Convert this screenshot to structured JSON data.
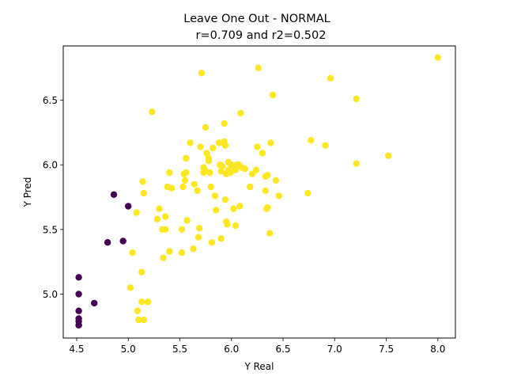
{
  "chart_data": {
    "type": "scatter",
    "title_line1": "Leave One Out - NORMAL",
    "title_line2": "r=0.709 and r2=0.502",
    "xlabel": "Y Real",
    "ylabel": "Y Pred",
    "xlim": [
      4.37,
      8.17
    ],
    "ylim": [
      4.66,
      6.92
    ],
    "xticks": [
      "4.5",
      "5.0",
      "5.5",
      "6.0",
      "6.5",
      "7.0",
      "7.5",
      "8.0"
    ],
    "yticks": [
      "5.0",
      "5.5",
      "6.0",
      "6.5"
    ],
    "grid": false,
    "colors": {
      "low": "#440154",
      "high": "#fde725",
      "axis": "#000000"
    },
    "series": [
      {
        "color": "#440154",
        "points": [
          [
            4.52,
            5.13
          ],
          [
            4.52,
            5.0
          ],
          [
            4.52,
            4.87
          ],
          [
            4.52,
            4.81
          ],
          [
            4.52,
            4.79
          ],
          [
            4.52,
            4.76
          ],
          [
            4.52,
            4.76
          ],
          [
            4.67,
            4.93
          ],
          [
            4.8,
            5.4
          ],
          [
            4.86,
            5.77
          ],
          [
            4.95,
            5.41
          ],
          [
            5.0,
            5.68
          ]
        ]
      },
      {
        "color": "#fde725",
        "points": [
          [
            5.02,
            5.05
          ],
          [
            5.04,
            5.32
          ],
          [
            5.08,
            5.63
          ],
          [
            5.09,
            4.87
          ],
          [
            5.1,
            4.8
          ],
          [
            5.13,
            5.17
          ],
          [
            5.13,
            4.94
          ],
          [
            5.14,
            5.87
          ],
          [
            5.15,
            5.78
          ],
          [
            5.15,
            4.8
          ],
          [
            5.19,
            4.94
          ],
          [
            5.23,
            6.41
          ],
          [
            5.28,
            5.58
          ],
          [
            5.3,
            5.66
          ],
          [
            5.33,
            5.5
          ],
          [
            5.34,
            5.28
          ],
          [
            5.36,
            5.5
          ],
          [
            5.36,
            5.6
          ],
          [
            5.38,
            5.83
          ],
          [
            5.4,
            5.94
          ],
          [
            5.4,
            5.33
          ],
          [
            5.42,
            5.82
          ],
          [
            5.52,
            5.32
          ],
          [
            5.52,
            5.5
          ],
          [
            5.53,
            5.83
          ],
          [
            5.54,
            5.93
          ],
          [
            5.55,
            5.88
          ],
          [
            5.56,
            5.94
          ],
          [
            5.56,
            6.05
          ],
          [
            5.57,
            5.57
          ],
          [
            5.6,
            6.17
          ],
          [
            5.63,
            5.35
          ],
          [
            5.64,
            5.85
          ],
          [
            5.67,
            5.8
          ],
          [
            5.68,
            5.44
          ],
          [
            5.69,
            5.51
          ],
          [
            5.7,
            6.14
          ],
          [
            5.71,
            6.71
          ],
          [
            5.73,
            5.98
          ],
          [
            5.73,
            5.94
          ],
          [
            5.74,
            5.96
          ],
          [
            5.75,
            6.29
          ],
          [
            5.76,
            6.09
          ],
          [
            5.78,
            6.05
          ],
          [
            5.78,
            6.03
          ],
          [
            5.79,
            5.94
          ],
          [
            5.8,
            5.83
          ],
          [
            5.81,
            5.4
          ],
          [
            5.82,
            6.13
          ],
          [
            5.84,
            5.76
          ],
          [
            5.85,
            5.65
          ],
          [
            5.88,
            6.17
          ],
          [
            5.89,
            6.0
          ],
          [
            5.9,
            5.43
          ],
          [
            5.9,
            5.95
          ],
          [
            5.91,
            5.99
          ],
          [
            5.92,
            6.17
          ],
          [
            5.93,
            6.32
          ],
          [
            5.93,
            6.18
          ],
          [
            5.94,
            5.73
          ],
          [
            5.94,
            6.15
          ],
          [
            5.95,
            5.93
          ],
          [
            5.95,
            5.56
          ],
          [
            5.96,
            5.54
          ],
          [
            5.97,
            5.96
          ],
          [
            5.97,
            6.02
          ],
          [
            5.99,
            5.94
          ],
          [
            6.0,
            6.0
          ],
          [
            6.02,
            5.66
          ],
          [
            6.03,
            5.98
          ],
          [
            6.04,
            5.96
          ],
          [
            6.04,
            5.53
          ],
          [
            6.05,
            6.0
          ],
          [
            6.07,
            6.0
          ],
          [
            6.08,
            5.68
          ],
          [
            6.09,
            6.4
          ],
          [
            6.1,
            5.98
          ],
          [
            6.13,
            5.97
          ],
          [
            6.18,
            5.83
          ],
          [
            6.2,
            5.93
          ],
          [
            6.24,
            5.96
          ],
          [
            6.25,
            6.14
          ],
          [
            6.26,
            6.75
          ],
          [
            6.3,
            6.09
          ],
          [
            6.33,
            5.91
          ],
          [
            6.33,
            5.8
          ],
          [
            6.34,
            5.66
          ],
          [
            6.35,
            5.92
          ],
          [
            6.35,
            5.67
          ],
          [
            6.37,
            5.47
          ],
          [
            6.38,
            6.17
          ],
          [
            6.4,
            6.54
          ],
          [
            6.43,
            5.88
          ],
          [
            6.46,
            5.76
          ],
          [
            6.74,
            5.78
          ],
          [
            6.77,
            6.19
          ],
          [
            6.91,
            6.15
          ],
          [
            6.96,
            6.67
          ],
          [
            7.21,
            6.51
          ],
          [
            7.21,
            6.01
          ],
          [
            7.52,
            6.07
          ],
          [
            8.0,
            6.83
          ]
        ]
      }
    ]
  }
}
